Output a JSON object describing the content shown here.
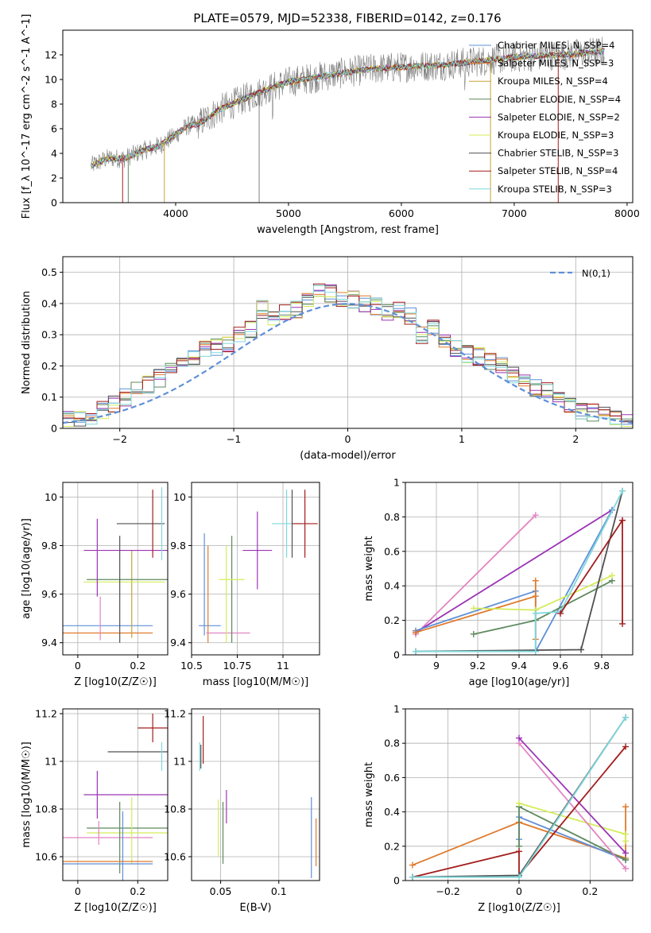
{
  "figure_title": "PLATE=0579, MJD=52338, FIBERID=0142, z=0.176",
  "colors": {
    "spec_obs": "#808080",
    "cMIL": "#5f8fd8",
    "sMIL": "#df7a2c",
    "kMIL": "#c9a13c",
    "cELO": "#5e8a5e",
    "sELO": "#9b34b5",
    "kELO": "#d4ec5a",
    "cSTE": "#505050",
    "sSTE": "#a31d1d",
    "kSTE": "#7fd8dc",
    "pink": "#e285c2"
  },
  "chart_data": [
    {
      "type": "line",
      "id": "spectrum",
      "xlabel": "wavelength [Angstrom, rest frame]",
      "ylabel": "Flux [f_λ 10^-17 erg cm^-2 s^-1 A^-1]",
      "xlim": [
        3000,
        8050
      ],
      "ylim": [
        0,
        14
      ],
      "xticks": [
        4000,
        5000,
        6000,
        7000,
        8000
      ],
      "yticks": [
        0,
        2,
        4,
        6,
        8,
        10,
        12
      ],
      "grid": false,
      "legend_position": "upper-right",
      "continuum": {
        "x": [
          3250,
          3400,
          3550,
          3700,
          3850,
          4000,
          4100,
          4200,
          4300,
          4400,
          4500,
          4600,
          4700,
          4800,
          4900,
          5000,
          5200,
          5400,
          5600,
          5800,
          6000,
          6200,
          6400,
          6600,
          6800,
          7000,
          7200,
          7400,
          7600,
          7800
        ],
        "y": [
          3.0,
          3.6,
          3.6,
          4.2,
          4.6,
          5.5,
          6.2,
          6.4,
          7.0,
          7.6,
          8.0,
          8.4,
          8.8,
          9.2,
          9.5,
          9.8,
          10.1,
          10.4,
          10.7,
          10.9,
          11.0,
          11.1,
          11.2,
          11.4,
          11.6,
          11.8,
          11.9,
          12.0,
          12.1,
          12.3
        ]
      },
      "series_names": [
        "Chabrier MILES, N_SSP=4",
        "Salpeter MILES, N_SSP=3",
        "Kroupa MILES, N_SSP=4",
        "Chabrier ELODIE, N_SSP=4",
        "Salpeter ELODIE, N_SSP=2",
        "Kroupa ELODIE, N_SSP=3",
        "Chabrier STELIB, N_SSP=3",
        "Salpeter STELIB, N_SSP=4",
        "Kroupa STELIB, N_SSP=3"
      ]
    },
    {
      "type": "line",
      "id": "residuals",
      "xlabel": "(data-model)/error",
      "ylabel": "Normed distribution",
      "xlim": [
        -2.5,
        2.5
      ],
      "ylim": [
        0,
        0.55
      ],
      "xticks": [
        -2,
        -1,
        0,
        1,
        2
      ],
      "yticks": [
        0.0,
        0.1,
        0.2,
        0.3,
        0.4,
        0.5
      ],
      "grid": true,
      "legend": "N(0,1)",
      "legend_position": "upper-right",
      "hist_bins": 50,
      "hist_x": [
        -2.45,
        -2.35,
        -2.25,
        -2.15,
        -2.05,
        -1.95,
        -1.85,
        -1.75,
        -1.65,
        -1.55,
        -1.45,
        -1.35,
        -1.25,
        -1.15,
        -1.05,
        -0.95,
        -0.85,
        -0.75,
        -0.65,
        -0.55,
        -0.45,
        -0.35,
        -0.25,
        -0.15,
        -0.05,
        0.05,
        0.15,
        0.25,
        0.35,
        0.45,
        0.55,
        0.65,
        0.75,
        0.85,
        0.95,
        1.05,
        1.15,
        1.25,
        1.35,
        1.45,
        1.55,
        1.65,
        1.75,
        1.85,
        1.95,
        2.05,
        2.15,
        2.25,
        2.35,
        2.45
      ],
      "hist_y": [
        0.03,
        0.035,
        0.04,
        0.06,
        0.08,
        0.1,
        0.12,
        0.14,
        0.16,
        0.19,
        0.21,
        0.23,
        0.25,
        0.26,
        0.27,
        0.3,
        0.32,
        0.38,
        0.36,
        0.37,
        0.38,
        0.41,
        0.44,
        0.43,
        0.42,
        0.41,
        0.4,
        0.39,
        0.37,
        0.38,
        0.36,
        0.3,
        0.32,
        0.29,
        0.26,
        0.24,
        0.23,
        0.21,
        0.2,
        0.17,
        0.15,
        0.13,
        0.12,
        0.1,
        0.08,
        0.06,
        0.05,
        0.04,
        0.03,
        0.02
      ]
    },
    {
      "type": "scatter",
      "id": "age_vs_Z",
      "xlabel": "Z [log10(Z/Z☉)]",
      "ylabel": "age [log10(age/yr)]",
      "xlim": [
        -0.05,
        0.3
      ],
      "ylim": [
        9.35,
        10.06
      ],
      "xticks": [
        0.0,
        0.2
      ],
      "yticks": [
        9.4,
        9.6,
        9.8,
        10.0
      ],
      "grid": true,
      "errorbars": [
        {
          "c": "cMIL",
          "x": 0.1,
          "xerr": 0.15,
          "y": 9.47,
          "yerr": 0
        },
        {
          "c": "sMIL",
          "x": 0.1,
          "xerr": 0.15,
          "y": 9.44,
          "yerr": 0
        },
        {
          "c": "kMIL",
          "x": 0.18,
          "xerr": 0,
          "y": 9.6,
          "yerr": 0.18
        },
        {
          "c": "cELO",
          "x": 0.165,
          "xerr": 0.135,
          "y": 9.66,
          "yerr": 0
        },
        {
          "c": "sELO",
          "x": 0.16,
          "xerr": 0.14,
          "y": 9.78,
          "yerr": 0
        },
        {
          "c": "kELO",
          "x": 0.155,
          "xerr": 0.135,
          "y": 9.65,
          "yerr": 0
        },
        {
          "c": "cSTE",
          "x": 0.21,
          "xerr": 0.08,
          "y": 9.89,
          "yerr": 0
        },
        {
          "c": "sSTE",
          "x": 0.25,
          "xerr": 0,
          "y": 9.89,
          "yerr": 0.14
        },
        {
          "c": "kSTE",
          "x": 0.28,
          "xerr": 0,
          "y": 9.89,
          "yerr": 0.15
        },
        {
          "c": "pink",
          "x": 0.075,
          "xerr": 0,
          "y": 9.5,
          "yerr": 0.09
        },
        {
          "c": "sELO",
          "x": 0.065,
          "xerr": 0,
          "y": 9.75,
          "yerr": 0.16
        },
        {
          "c": "cSTE",
          "x": 0.14,
          "xerr": 0,
          "y": 9.62,
          "yerr": 0.22
        }
      ]
    },
    {
      "type": "scatter",
      "id": "age_vs_mass",
      "xlabel": "mass [log10(M/M☉)]",
      "ylabel": "",
      "xlim": [
        10.5,
        11.2
      ],
      "ylim": [
        9.35,
        10.06
      ],
      "xticks": [
        10.5,
        10.75,
        11.0
      ],
      "yticks": [
        9.4,
        9.6,
        9.8,
        10.0
      ],
      "grid": true,
      "errorbars": [
        {
          "c": "cMIL",
          "x": 10.57,
          "xerr": 0,
          "y": 9.64,
          "yerr": 0.21
        },
        {
          "c": "cMIL",
          "x": 10.6,
          "xerr": 0.06,
          "y": 9.47,
          "yerr": 0
        },
        {
          "c": "sMIL",
          "x": 10.59,
          "xerr": 0,
          "y": 9.6,
          "yerr": 0.2
        },
        {
          "c": "pink",
          "x": 10.7,
          "xerr": 0.12,
          "y": 9.44,
          "yerr": 0
        },
        {
          "c": "kELO",
          "x": 10.69,
          "xerr": 0,
          "y": 9.6,
          "yerr": 0.2
        },
        {
          "c": "cELO",
          "x": 10.72,
          "xerr": 0,
          "y": 9.62,
          "yerr": 0.22
        },
        {
          "c": "kELO",
          "x": 10.72,
          "xerr": 0.07,
          "y": 9.66,
          "yerr": 0
        },
        {
          "c": "sELO",
          "x": 10.86,
          "xerr": 0.08,
          "y": 9.78,
          "yerr": 0.16
        },
        {
          "c": "kSTE",
          "x": 11.02,
          "xerr": 0.08,
          "y": 9.89,
          "yerr": 0.14
        },
        {
          "c": "cSTE",
          "x": 11.05,
          "xerr": 0,
          "y": 9.89,
          "yerr": 0.14
        },
        {
          "c": "sSTE",
          "x": 11.12,
          "xerr": 0.07,
          "y": 9.89,
          "yerr": 0.14
        }
      ]
    },
    {
      "type": "line",
      "id": "massweight_vs_age",
      "xlabel": "age [log10(age/yr)]",
      "ylabel": "mass weight",
      "xlim": [
        8.85,
        9.95
      ],
      "ylim": [
        0,
        1
      ],
      "xticks": [
        9.0,
        9.2,
        9.4,
        9.6,
        9.8
      ],
      "yticks": [
        0.0,
        0.2,
        0.4,
        0.6,
        0.8,
        1.0
      ],
      "grid": true,
      "series": [
        {
          "c": "pink",
          "x": [
            8.9,
            9.48
          ],
          "y": [
            0.12,
            0.81
          ]
        },
        {
          "c": "sELO",
          "x": [
            8.9,
            9.85
          ],
          "y": [
            0.13,
            0.84
          ]
        },
        {
          "c": "cMIL",
          "x": [
            8.9,
            9.48,
            9.48,
            9.85
          ],
          "y": [
            0.14,
            0.37,
            0.02,
            0.84
          ]
        },
        {
          "c": "sMIL",
          "x": [
            8.9,
            9.48,
            9.48,
            9.48
          ],
          "y": [
            0.13,
            0.34,
            0.43,
            0.09
          ]
        },
        {
          "c": "cELO",
          "x": [
            9.18,
            9.48,
            9.85
          ],
          "y": [
            0.12,
            0.2,
            0.43
          ]
        },
        {
          "c": "kELO",
          "x": [
            9.18,
            9.48,
            9.85
          ],
          "y": [
            0.27,
            0.26,
            0.46
          ]
        },
        {
          "c": "cSTE",
          "x": [
            8.9,
            9.7,
            9.9
          ],
          "y": [
            0.02,
            0.03,
            0.95
          ]
        },
        {
          "c": "kSTE",
          "x": [
            8.9,
            9.48,
            9.48,
            9.6,
            9.9
          ],
          "y": [
            0.02,
            0.02,
            0.24,
            0.25,
            0.95
          ]
        },
        {
          "c": "sSTE",
          "x": [
            9.6,
            9.9,
            9.9
          ],
          "y": [
            0.24,
            0.78,
            0.18
          ]
        }
      ]
    },
    {
      "type": "scatter",
      "id": "mass_vs_Z",
      "xlabel": "Z [log10(Z/Z☉)]",
      "ylabel": "mass [log10(M/M☉)]",
      "xlim": [
        -0.05,
        0.3
      ],
      "ylim": [
        10.5,
        11.22
      ],
      "xticks": [
        0.0,
        0.2
      ],
      "yticks": [
        10.6,
        10.8,
        11.0,
        11.2
      ],
      "grid": true,
      "errorbars": [
        {
          "c": "sSTE",
          "x": 0.25,
          "xerr": 0.05,
          "y": 11.14,
          "yerr": 0.06
        },
        {
          "c": "cSTE",
          "x": 0.2,
          "xerr": 0.1,
          "y": 11.04,
          "yerr": 0
        },
        {
          "c": "kSTE",
          "x": 0.28,
          "xerr": 0,
          "y": 11.02,
          "yerr": 0.06
        },
        {
          "c": "sELO",
          "x": 0.16,
          "xerr": 0.14,
          "y": 10.86,
          "yerr": 0
        },
        {
          "c": "sELO",
          "x": 0.065,
          "xerr": 0,
          "y": 10.86,
          "yerr": 0.1
        },
        {
          "c": "cELO",
          "x": 0.165,
          "xerr": 0.135,
          "y": 10.72,
          "yerr": 0
        },
        {
          "c": "kELO",
          "x": 0.165,
          "xerr": 0.135,
          "y": 10.7,
          "yerr": 0
        },
        {
          "c": "pink",
          "x": 0.1,
          "xerr": 0.15,
          "y": 10.68,
          "yerr": 0
        },
        {
          "c": "pink",
          "x": 0.07,
          "xerr": 0,
          "y": 10.7,
          "yerr": 0.05
        },
        {
          "c": "cELO",
          "x": 0.14,
          "xerr": 0,
          "y": 10.68,
          "yerr": 0.15
        },
        {
          "c": "kELO",
          "x": 0.18,
          "xerr": 0,
          "y": 10.71,
          "yerr": 0.14
        },
        {
          "c": "sMIL",
          "x": 0.1,
          "xerr": 0.15,
          "y": 10.58,
          "yerr": 0
        },
        {
          "c": "cMIL",
          "x": 0.1,
          "xerr": 0.15,
          "y": 10.57,
          "yerr": 0
        },
        {
          "c": "cMIL",
          "x": 0.15,
          "xerr": 0,
          "y": 10.64,
          "yerr": 0.15
        }
      ]
    },
    {
      "type": "scatter",
      "id": "mass_vs_ebv",
      "xlabel": "E(B-V)",
      "ylabel": "",
      "xlim": [
        0.025,
        0.135
      ],
      "ylim": [
        10.5,
        11.22
      ],
      "xticks": [
        0.05,
        0.1
      ],
      "yticks": [
        10.6,
        10.8,
        11.0,
        11.2
      ],
      "grid": true,
      "errorbars": [
        {
          "c": "sSTE",
          "x": 0.035,
          "xerr": 0,
          "y": 11.09,
          "yerr": 0.1
        },
        {
          "c": "kSTE",
          "x": 0.032,
          "xerr": 0,
          "y": 11.02,
          "yerr": 0.06
        },
        {
          "c": "cSTE",
          "x": 0.033,
          "xerr": 0,
          "y": 11.02,
          "yerr": 0.05
        },
        {
          "c": "kELO",
          "x": 0.048,
          "xerr": 0,
          "y": 10.72,
          "yerr": 0.12
        },
        {
          "c": "cELO",
          "x": 0.052,
          "xerr": 0,
          "y": 10.7,
          "yerr": 0.13
        },
        {
          "c": "sELO",
          "x": 0.055,
          "xerr": 0,
          "y": 10.81,
          "yerr": 0.07
        },
        {
          "c": "cMIL",
          "x": 0.128,
          "xerr": 0,
          "y": 10.68,
          "yerr": 0.17
        },
        {
          "c": "sMIL",
          "x": 0.132,
          "xerr": 0,
          "y": 10.66,
          "yerr": 0.1
        }
      ]
    },
    {
      "type": "line",
      "id": "massweight_vs_Z",
      "xlabel": "Z [log10(Z/Z☉)]",
      "ylabel": "mass weight",
      "xlim": [
        -0.32,
        0.32
      ],
      "ylim": [
        0,
        1
      ],
      "xticks": [
        -0.2,
        0.0,
        0.2
      ],
      "yticks": [
        0.0,
        0.2,
        0.4,
        0.6,
        0.8,
        1.0
      ],
      "grid": true,
      "series": [
        {
          "c": "sMIL",
          "x": [
            -0.3,
            0.0,
            0.3,
            0.3
          ],
          "y": [
            0.09,
            0.34,
            0.13,
            0.43
          ]
        },
        {
          "c": "cMIL",
          "x": [
            0.0,
            0.0,
            0.3
          ],
          "y": [
            0.24,
            0.37,
            0.12
          ]
        },
        {
          "c": "cELO",
          "x": [
            0.0,
            0.0,
            0.3
          ],
          "y": [
            0.2,
            0.43,
            0.12
          ]
        },
        {
          "c": "kELO",
          "x": [
            0.0,
            0.3,
            0.3
          ],
          "y": [
            0.45,
            0.27,
            0.23
          ]
        },
        {
          "c": "pink",
          "x": [
            0.0,
            0.3
          ],
          "y": [
            0.8,
            0.07
          ]
        },
        {
          "c": "sELO",
          "x": [
            0.0,
            0.3
          ],
          "y": [
            0.83,
            0.16
          ]
        },
        {
          "c": "sSTE",
          "x": [
            -0.3,
            0.0,
            0.0,
            0.3
          ],
          "y": [
            0.02,
            0.17,
            0.03,
            0.78
          ]
        },
        {
          "c": "cSTE",
          "x": [
            -0.3,
            0.0,
            0.3
          ],
          "y": [
            0.02,
            0.03,
            0.95
          ]
        },
        {
          "c": "kSTE",
          "x": [
            -0.3,
            0.0,
            0.3
          ],
          "y": [
            0.02,
            0.02,
            0.95
          ]
        }
      ]
    }
  ]
}
